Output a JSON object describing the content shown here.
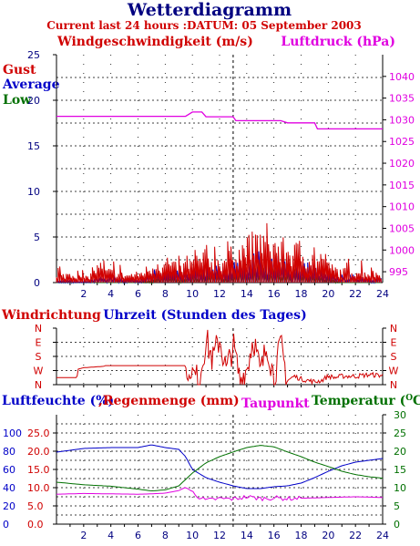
{
  "header": {
    "title": "Wetterdiagramm",
    "subtitle": "Current last 24 hours :DATUM: 05 September 2003"
  },
  "colors": {
    "red": "#d00000",
    "blue": "#0000c8",
    "green": "#007000",
    "magenta": "#e000e0",
    "navy": "#000080",
    "grid": "#000000"
  },
  "chart_data": [
    {
      "id": "wind",
      "type": "line",
      "title_left": "Windgeschwindigkeit (m/s)",
      "title_right": "Luftdruck (hPa)",
      "legend": [
        "Gust",
        "Average",
        "Low"
      ],
      "legend_placement": "top-left",
      "grid": true,
      "x_ticks": [
        2,
        4,
        6,
        8,
        10,
        12,
        14,
        16,
        18,
        20,
        22,
        24
      ],
      "xlim": [
        0,
        24
      ],
      "ylim_left": [
        0,
        25
      ],
      "y_ticks_left": [
        0,
        5,
        10,
        15,
        20,
        25
      ],
      "ylim_right": [
        992.5,
        1045
      ],
      "y_ticks_right": [
        995,
        1000,
        1005,
        1010,
        1015,
        1020,
        1025,
        1030,
        1035,
        1040
      ],
      "series": [
        {
          "name": "Gust",
          "axis": "left",
          "x": [
            0,
            1,
            2,
            3,
            4,
            5,
            6,
            7,
            8,
            9,
            10,
            11,
            12,
            13,
            14,
            15,
            16,
            17,
            18,
            19,
            20,
            21,
            22,
            23,
            24
          ],
          "values": [
            0.4,
            0.8,
            0.3,
            1.0,
            0.9,
            0.6,
            0.7,
            1.3,
            1.5,
            1.2,
            1.7,
            2.1,
            1.8,
            2.3,
            2.9,
            3.5,
            2.9,
            2.7,
            2.5,
            2.0,
            1.3,
            0.9,
            1.0,
            0.8,
            0.7
          ]
        },
        {
          "name": "Average",
          "axis": "left",
          "x": [
            0,
            1,
            2,
            3,
            4,
            5,
            6,
            7,
            8,
            9,
            10,
            11,
            12,
            13,
            14,
            15,
            16,
            17,
            18,
            19,
            20,
            21,
            22,
            23,
            24
          ],
          "values": [
            0.1,
            0.2,
            0.1,
            0.4,
            0.5,
            0.3,
            0.3,
            0.8,
            0.9,
            0.8,
            1.0,
            1.2,
            1.1,
            1.4,
            1.8,
            2.0,
            1.7,
            1.6,
            1.4,
            1.2,
            0.7,
            0.5,
            0.5,
            0.4,
            0.4
          ]
        },
        {
          "name": "Low",
          "axis": "left",
          "x": [
            0,
            1,
            2,
            3,
            4,
            5,
            6,
            7,
            8,
            9,
            10,
            11,
            12,
            13,
            14,
            15,
            16,
            17,
            18,
            19,
            20,
            21,
            22,
            23,
            24
          ],
          "values": [
            0,
            0,
            0,
            0,
            0,
            0,
            0,
            0.3,
            0.5,
            0.3,
            0.6,
            0.7,
            0.6,
            0.8,
            1.0,
            1.2,
            1.0,
            0.9,
            0.8,
            0.6,
            0.3,
            0,
            0,
            0,
            0
          ]
        },
        {
          "name": "Luftdruck",
          "axis": "right",
          "x": [
            0,
            9.5,
            10,
            10.7,
            11,
            13,
            13.2,
            16,
            16.5,
            17,
            19,
            19.2,
            24
          ],
          "values": [
            1030.8,
            1030.8,
            1031.8,
            1031.8,
            1030.7,
            1030.7,
            1029.8,
            1029.8,
            1029.8,
            1029.3,
            1029.3,
            1027.9,
            1027.9
          ]
        }
      ]
    },
    {
      "id": "direction",
      "type": "line",
      "title_left": "Windrichtung",
      "title_center": "Uhrzeit (Stunden des Tages)",
      "y_categories": [
        "N",
        "W",
        "S",
        "E",
        "N"
      ],
      "xlim": [
        0,
        24
      ],
      "grid": true,
      "series": [
        {
          "name": "Windrichtung",
          "x": [
            0,
            1.5,
            1.6,
            2,
            3.5,
            3.6,
            8,
            8.5,
            9.5,
            9.6,
            10,
            10.5,
            11,
            11.5,
            12,
            12.5,
            13,
            13.5,
            14,
            14.5,
            15,
            15.5,
            16,
            16.5,
            17,
            17.5,
            18,
            18.5,
            19,
            19.5,
            20,
            20.5,
            21,
            22,
            23,
            24
          ],
          "values": [
            0.0,
            0.0,
            0.6,
            0.7,
            0.8,
            0.85,
            0.85,
            0.85,
            0.85,
            -0.1,
            0.2,
            -0.2,
            2.7,
            1.2,
            2.8,
            0.4,
            2.3,
            -0.2,
            0.6,
            2.9,
            0.2,
            2.4,
            0.0,
            2.3,
            -0.2,
            0.1,
            -0.1,
            -0.2,
            -0.3,
            -0.2,
            0.1,
            0.0,
            0.1,
            0.1,
            0.2,
            0.15
          ]
        }
      ]
    },
    {
      "id": "humidity",
      "type": "line",
      "title_left_1": "Luftfeuchte (%)",
      "title_left_2": ",Regenmenge (mm)",
      "title_center": "Taupunkt",
      "title_right": "Temperatur (",
      "title_right_sup": "O",
      "title_right_end": "C)",
      "xlim": [
        0,
        24
      ],
      "x_ticks": [
        2,
        4,
        6,
        8,
        10,
        12,
        14,
        16,
        18,
        20,
        22,
        24
      ],
      "ylim_humidity": [
        0,
        120
      ],
      "y_ticks_humidity": [
        0,
        20,
        40,
        60,
        80,
        100
      ],
      "y_ticks_rain": [
        "0.0",
        "5.0",
        "10.0",
        "15.0",
        "20.0",
        "25.0"
      ],
      "ylim_temp": [
        0,
        30
      ],
      "y_ticks_temp": [
        0,
        5,
        10,
        15,
        20,
        25,
        30
      ],
      "grid": true,
      "series": [
        {
          "name": "Luftfeuchte",
          "axis": "humidity",
          "x": [
            0,
            2,
            4,
            6,
            7,
            8,
            9,
            9.5,
            10,
            11,
            12,
            13,
            14,
            15,
            16,
            17,
            18,
            19,
            20,
            21,
            22,
            23,
            24
          ],
          "values": [
            79,
            83,
            84,
            84,
            87,
            84,
            82,
            74,
            60,
            51,
            46,
            42,
            39,
            39,
            41,
            42,
            45,
            51,
            58,
            64,
            68,
            70,
            72
          ]
        },
        {
          "name": "Temperatur",
          "axis": "temp",
          "x": [
            0,
            2,
            4,
            6,
            7,
            8,
            9,
            10,
            11,
            12,
            13,
            14,
            15,
            16,
            17,
            18,
            19,
            20,
            21,
            22,
            23,
            24
          ],
          "values": [
            11.5,
            10.8,
            10.4,
            9.6,
            9.1,
            9.4,
            10.5,
            14.0,
            16.8,
            18.5,
            19.8,
            21.0,
            21.6,
            21.2,
            19.8,
            18.5,
            17.0,
            15.8,
            14.5,
            13.6,
            13.0,
            12.6
          ]
        },
        {
          "name": "Taupunkt",
          "axis": "temp",
          "x": [
            0,
            2,
            4,
            6,
            7,
            8,
            9,
            9.5,
            10,
            10.5,
            11,
            12,
            13,
            14,
            15,
            16,
            17,
            18,
            20,
            22,
            24
          ],
          "values": [
            8.2,
            8.4,
            8.3,
            8.2,
            8.3,
            8.5,
            9.2,
            10.1,
            8.9,
            7.4,
            6.5,
            7.0,
            6.9,
            7.5,
            7.0,
            7.2,
            7.0,
            7.1,
            7.3,
            7.5,
            7.3
          ]
        }
      ]
    }
  ]
}
